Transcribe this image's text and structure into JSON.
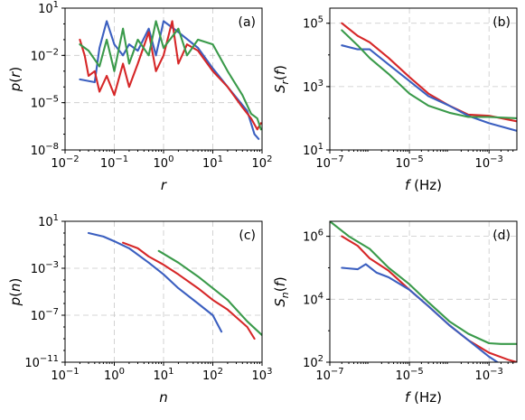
{
  "colors": {
    "red": "#d62728",
    "blue": "#3b5fc0",
    "green": "#3a9a4a"
  },
  "chart_data": [
    {
      "type": "line",
      "panel_label": "(a)",
      "xlabel": "r",
      "ylabel": "p(r)",
      "xscale": "log",
      "yscale": "log",
      "xlim": [
        0.01,
        100
      ],
      "ylim": [
        1e-08,
        10
      ],
      "xticks": [
        {
          "v": 0.01,
          "m": "10",
          "e": "−2"
        },
        {
          "v": 0.1,
          "m": "10",
          "e": "−1"
        },
        {
          "v": 1,
          "m": "10",
          "e": "0"
        },
        {
          "v": 10,
          "m": "10",
          "e": "1"
        },
        {
          "v": 100,
          "m": "10",
          "e": "2"
        }
      ],
      "yticks": [
        {
          "v": 1e-08,
          "m": "10",
          "e": "−8"
        },
        {
          "v": 1e-05,
          "m": "10",
          "e": "−5"
        },
        {
          "v": 0.01,
          "m": "10",
          "e": "−2"
        },
        {
          "v": 10,
          "m": "10",
          "e": "1"
        }
      ],
      "grid": true,
      "series": [
        {
          "color": "blue",
          "x": [
            0.02,
            0.04,
            0.05,
            0.07,
            0.1,
            0.15,
            0.2,
            0.3,
            0.5,
            0.7,
            1,
            2,
            5,
            10,
            20,
            50,
            70,
            85
          ],
          "y": [
            0.0003,
            0.0002,
            0.03,
            1.5,
            0.05,
            0.01,
            0.05,
            0.02,
            0.5,
            0.01,
            1.5,
            0.3,
            0.03,
            0.0015,
            0.0001,
            3e-06,
            1e-07,
            5e-08
          ]
        },
        {
          "color": "red",
          "x": [
            0.02,
            0.025,
            0.03,
            0.04,
            0.05,
            0.07,
            0.1,
            0.15,
            0.2,
            0.3,
            0.5,
            0.7,
            1,
            1.5,
            2,
            3,
            5,
            10,
            20,
            40,
            60,
            80,
            95
          ],
          "y": [
            0.1,
            0.01,
            0.0005,
            0.001,
            5e-05,
            0.0005,
            3e-05,
            0.003,
            0.0001,
            0.003,
            0.3,
            0.001,
            0.01,
            1.5,
            0.003,
            0.05,
            0.02,
            0.001,
            0.0001,
            5e-06,
            1e-06,
            2e-07,
            5e-07
          ]
        },
        {
          "color": "green",
          "x": [
            0.02,
            0.03,
            0.05,
            0.07,
            0.1,
            0.15,
            0.2,
            0.3,
            0.5,
            0.7,
            1,
            2,
            3,
            5,
            10,
            20,
            40,
            60,
            80,
            95
          ],
          "y": [
            0.05,
            0.02,
            0.002,
            0.1,
            0.001,
            0.5,
            0.003,
            0.1,
            0.01,
            1.5,
            0.03,
            0.5,
            0.01,
            0.1,
            0.05,
            0.001,
            3e-05,
            2e-06,
            1e-06,
            2e-07
          ]
        }
      ]
    },
    {
      "type": "line",
      "panel_label": "(b)",
      "xlabel": "f (Hz)",
      "ylabel": "S_r(f)",
      "xscale": "log",
      "yscale": "log",
      "xlim": [
        1e-07,
        0.005
      ],
      "ylim": [
        10,
        300000
      ],
      "xticks": [
        {
          "v": 1e-07,
          "m": "10",
          "e": "−7"
        },
        {
          "v": 1e-05,
          "m": "10",
          "e": "−5"
        },
        {
          "v": 0.001,
          "m": "10",
          "e": "−3"
        }
      ],
      "yticks": [
        {
          "v": 10,
          "m": "10",
          "e": "1"
        },
        {
          "v": 1000,
          "m": "10",
          "e": "3"
        },
        {
          "v": 100000,
          "m": "10",
          "e": "5"
        }
      ],
      "grid": true,
      "series": [
        {
          "color": "red",
          "x": [
            2e-07,
            5e-07,
            1e-06,
            3e-06,
            1e-05,
            3e-05,
            0.0001,
            0.0003,
            0.001,
            0.005
          ],
          "y": [
            100000,
            40000,
            25000,
            8000,
            2000,
            600,
            250,
            130,
            120,
            80
          ]
        },
        {
          "color": "blue",
          "x": [
            2e-07,
            5e-07,
            1e-06,
            3e-06,
            1e-05,
            3e-05,
            0.0001,
            0.0003,
            0.001,
            0.005
          ],
          "y": [
            20000,
            15000,
            15000,
            5000,
            1500,
            500,
            250,
            120,
            70,
            40
          ]
        },
        {
          "color": "green",
          "x": [
            2e-07,
            5e-07,
            1e-06,
            3e-06,
            1e-05,
            3e-05,
            0.0001,
            0.0003,
            0.001,
            0.005
          ],
          "y": [
            60000,
            20000,
            8000,
            2500,
            600,
            250,
            150,
            110,
            110,
            100
          ]
        }
      ]
    },
    {
      "type": "line",
      "panel_label": "(c)",
      "xlabel": "n",
      "ylabel": "p(n)",
      "xscale": "log",
      "yscale": "log",
      "xlim": [
        0.1,
        1000
      ],
      "ylim": [
        1e-11,
        10
      ],
      "xticks": [
        {
          "v": 0.1,
          "m": "10",
          "e": "−1"
        },
        {
          "v": 1,
          "m": "10",
          "e": "0"
        },
        {
          "v": 10,
          "m": "10",
          "e": "1"
        },
        {
          "v": 100,
          "m": "10",
          "e": "2"
        },
        {
          "v": 1000,
          "m": "10",
          "e": "3"
        }
      ],
      "yticks": [
        {
          "v": 1e-11,
          "m": "10",
          "e": "−11"
        },
        {
          "v": 1e-07,
          "m": "10",
          "e": "−7"
        },
        {
          "v": 0.001,
          "m": "10",
          "e": "−3"
        },
        {
          "v": 10,
          "m": "10",
          "e": "1"
        }
      ],
      "grid": true,
      "series": [
        {
          "color": "blue",
          "x": [
            0.3,
            0.6,
            1,
            2,
            5,
            10,
            20,
            50,
            100,
            150
          ],
          "y": [
            1,
            0.5,
            0.2,
            0.05,
            0.003,
            0.0003,
            2e-05,
            1e-06,
            1e-07,
            4e-09
          ]
        },
        {
          "color": "red",
          "x": [
            1.5,
            3,
            5,
            10,
            20,
            50,
            100,
            200,
            500,
            700
          ],
          "y": [
            0.15,
            0.05,
            0.01,
            0.002,
            0.0003,
            2e-05,
            2e-06,
            3e-07,
            1e-08,
            1e-09
          ]
        },
        {
          "color": "green",
          "x": [
            8,
            20,
            50,
            100,
            200,
            500,
            1000
          ],
          "y": [
            0.03,
            0.003,
            0.0002,
            2e-05,
            2e-06,
            3e-08,
            2e-09
          ]
        }
      ]
    },
    {
      "type": "line",
      "panel_label": "(d)",
      "xlabel": "f (Hz)",
      "ylabel": "S_n(f)",
      "xscale": "log",
      "yscale": "log",
      "xlim": [
        1e-07,
        0.005
      ],
      "ylim": [
        100,
        3000000
      ],
      "xticks": [
        {
          "v": 1e-07,
          "m": "10",
          "e": "−7"
        },
        {
          "v": 1e-05,
          "m": "10",
          "e": "−5"
        },
        {
          "v": 0.001,
          "m": "10",
          "e": "−3"
        }
      ],
      "yticks": [
        {
          "v": 100,
          "m": "10",
          "e": "2"
        },
        {
          "v": 10000,
          "m": "10",
          "e": "4"
        },
        {
          "v": 1000000,
          "m": "10",
          "e": "6"
        }
      ],
      "grid": true,
      "series": [
        {
          "color": "green",
          "x": [
            1e-07,
            3e-07,
            1e-06,
            3e-06,
            1e-05,
            3e-05,
            0.0001,
            0.0003,
            0.001,
            0.002,
            0.005
          ],
          "y": [
            3000000,
            1000000,
            400000,
            100000,
            30000,
            8000,
            2000,
            800,
            400,
            380,
            380
          ]
        },
        {
          "color": "red",
          "x": [
            2e-07,
            5e-07,
            1e-06,
            3e-06,
            1e-05,
            3e-05,
            0.0001,
            0.0003,
            0.001,
            0.003,
            0.005
          ],
          "y": [
            1000000,
            500000,
            200000,
            80000,
            20000,
            6000,
            1500,
            500,
            200,
            120,
            100
          ]
        },
        {
          "color": "blue",
          "x": [
            2e-07,
            5e-07,
            8e-07,
            1.5e-06,
            3e-06,
            1e-05,
            3e-05,
            0.0001,
            0.0003,
            0.001,
            0.003
          ],
          "y": [
            100000,
            90000,
            130000,
            70000,
            50000,
            20000,
            6000,
            1500,
            500,
            150,
            60
          ]
        }
      ]
    }
  ]
}
